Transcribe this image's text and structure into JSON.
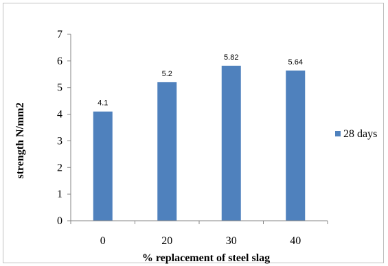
{
  "chart_data": {
    "type": "bar",
    "categories": [
      "0",
      "20",
      "30",
      "40"
    ],
    "series": [
      {
        "name": "28 days",
        "values": [
          4.1,
          5.2,
          5.82,
          5.64
        ],
        "data_labels": [
          "4.1",
          "5.2",
          "5.82",
          "5.64"
        ]
      }
    ],
    "title": "",
    "xlabel": "% replacement of steel slag",
    "ylabel": "strength N/mm2",
    "ylim": [
      0,
      7
    ],
    "yticks": [
      "0",
      "1",
      "2",
      "3",
      "4",
      "5",
      "6",
      "7"
    ],
    "grid": false,
    "legend_position": "right",
    "bar_color": "#4F81BD"
  }
}
